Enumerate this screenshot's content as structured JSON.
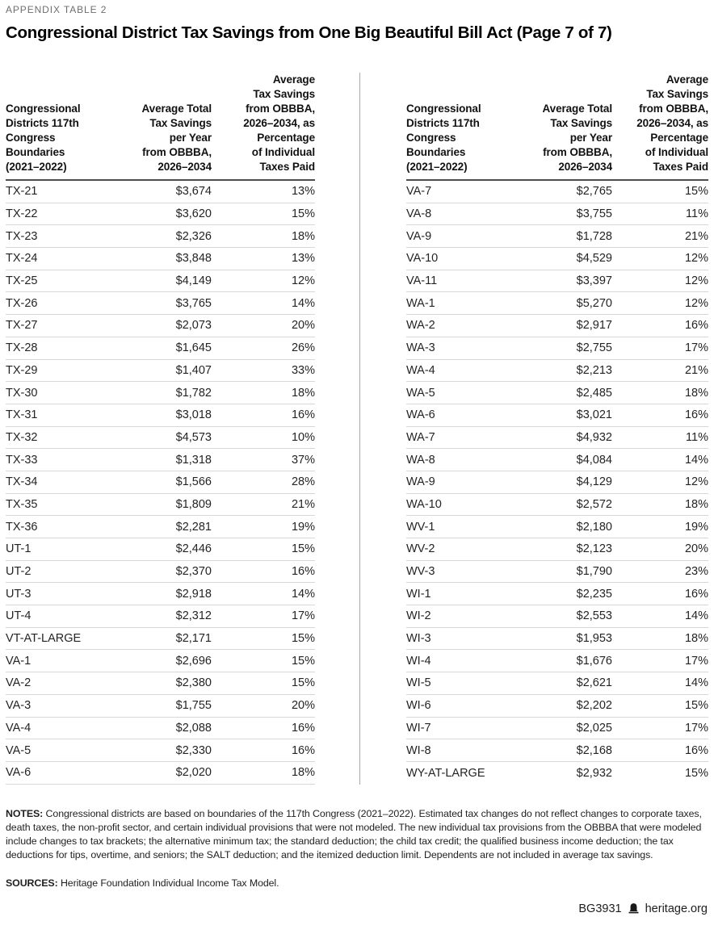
{
  "eyebrow": "APPENDIX TABLE 2",
  "title": "Congressional District Tax Savings from One Big Beautiful Bill Act (Page 7 of 7)",
  "columns": {
    "district": "Congressional\nDistricts 117th\nCongress\nBoundaries\n(2021–2022)",
    "savings": "Average Total\nTax Savings\nper Year\nfrom OBBBA,\n2026–2034",
    "percent": "Average\nTax Savings\nfrom OBBBA,\n2026–2034, as\nPercentage\nof Individual\nTaxes Paid"
  },
  "chart_data": {
    "type": "table",
    "title": "Congressional District Tax Savings from One Big Beautiful Bill Act (Page 7 of 7)",
    "columns": [
      "Congressional Districts 117th Congress Boundaries (2021–2022)",
      "Average Total Tax Savings per Year from OBBBA, 2026–2034",
      "Average Tax Savings from OBBBA, 2026–2034, as Percentage of Individual Taxes Paid"
    ],
    "left_rows": [
      [
        "TX-21",
        "$3,674",
        "13%"
      ],
      [
        "TX-22",
        "$3,620",
        "15%"
      ],
      [
        "TX-23",
        "$2,326",
        "18%"
      ],
      [
        "TX-24",
        "$3,848",
        "13%"
      ],
      [
        "TX-25",
        "$4,149",
        "12%"
      ],
      [
        "TX-26",
        "$3,765",
        "14%"
      ],
      [
        "TX-27",
        "$2,073",
        "20%"
      ],
      [
        "TX-28",
        "$1,645",
        "26%"
      ],
      [
        "TX-29",
        "$1,407",
        "33%"
      ],
      [
        "TX-30",
        "$1,782",
        "18%"
      ],
      [
        "TX-31",
        "$3,018",
        "16%"
      ],
      [
        "TX-32",
        "$4,573",
        "10%"
      ],
      [
        "TX-33",
        "$1,318",
        "37%"
      ],
      [
        "TX-34",
        "$1,566",
        "28%"
      ],
      [
        "TX-35",
        "$1,809",
        "21%"
      ],
      [
        "TX-36",
        "$2,281",
        "19%"
      ],
      [
        "UT-1",
        "$2,446",
        "15%"
      ],
      [
        "UT-2",
        "$2,370",
        "16%"
      ],
      [
        "UT-3",
        "$2,918",
        "14%"
      ],
      [
        "UT-4",
        "$2,312",
        "17%"
      ],
      [
        "VT-AT-LARGE",
        "$2,171",
        "15%"
      ],
      [
        "VA-1",
        "$2,696",
        "15%"
      ],
      [
        "VA-2",
        "$2,380",
        "15%"
      ],
      [
        "VA-3",
        "$1,755",
        "20%"
      ],
      [
        "VA-4",
        "$2,088",
        "16%"
      ],
      [
        "VA-5",
        "$2,330",
        "16%"
      ],
      [
        "VA-6",
        "$2,020",
        "18%"
      ]
    ],
    "right_rows": [
      [
        "VA-7",
        "$2,765",
        "15%"
      ],
      [
        "VA-8",
        "$3,755",
        "11%"
      ],
      [
        "VA-9",
        "$1,728",
        "21%"
      ],
      [
        "VA-10",
        "$4,529",
        "12%"
      ],
      [
        "VA-11",
        "$3,397",
        "12%"
      ],
      [
        "WA-1",
        "$5,270",
        "12%"
      ],
      [
        "WA-2",
        "$2,917",
        "16%"
      ],
      [
        "WA-3",
        "$2,755",
        "17%"
      ],
      [
        "WA-4",
        "$2,213",
        "21%"
      ],
      [
        "WA-5",
        "$2,485",
        "18%"
      ],
      [
        "WA-6",
        "$3,021",
        "16%"
      ],
      [
        "WA-7",
        "$4,932",
        "11%"
      ],
      [
        "WA-8",
        "$4,084",
        "14%"
      ],
      [
        "WA-9",
        "$4,129",
        "12%"
      ],
      [
        "WA-10",
        "$2,572",
        "18%"
      ],
      [
        "WV-1",
        "$2,180",
        "19%"
      ],
      [
        "WV-2",
        "$2,123",
        "20%"
      ],
      [
        "WV-3",
        "$1,790",
        "23%"
      ],
      [
        "WI-1",
        "$2,235",
        "16%"
      ],
      [
        "WI-2",
        "$2,553",
        "14%"
      ],
      [
        "WI-3",
        "$1,953",
        "18%"
      ],
      [
        "WI-4",
        "$1,676",
        "17%"
      ],
      [
        "WI-5",
        "$2,621",
        "14%"
      ],
      [
        "WI-6",
        "$2,202",
        "15%"
      ],
      [
        "WI-7",
        "$2,025",
        "17%"
      ],
      [
        "WI-8",
        "$2,168",
        "16%"
      ],
      [
        "WY-AT-LARGE",
        "$2,932",
        "15%"
      ]
    ]
  },
  "notes": {
    "label": "NOTES:",
    "text": " Congressional districts are based on boundaries of the 117th Congress (2021–2022). Estimated tax changes do not reflect changes to corporate taxes, death taxes, the non-profit sector, and certain individual provisions that were not modeled. The new individual tax provisions from the OBBBA that were modeled include changes to tax brackets; the alternative minimum tax; the standard deduction; the child tax credit; the qualified business income deduction; the tax deductions for tips, overtime, and seniors; the SALT deduction; and the itemized deduction limit. Dependents are not included in average tax savings."
  },
  "sources": {
    "label": "SOURCES:",
    "text": " Heritage Foundation Individual Income Tax Model."
  },
  "footer": {
    "report_id": "BG3931",
    "site": "heritage.org",
    "icon_color": "#1a1a1a"
  }
}
